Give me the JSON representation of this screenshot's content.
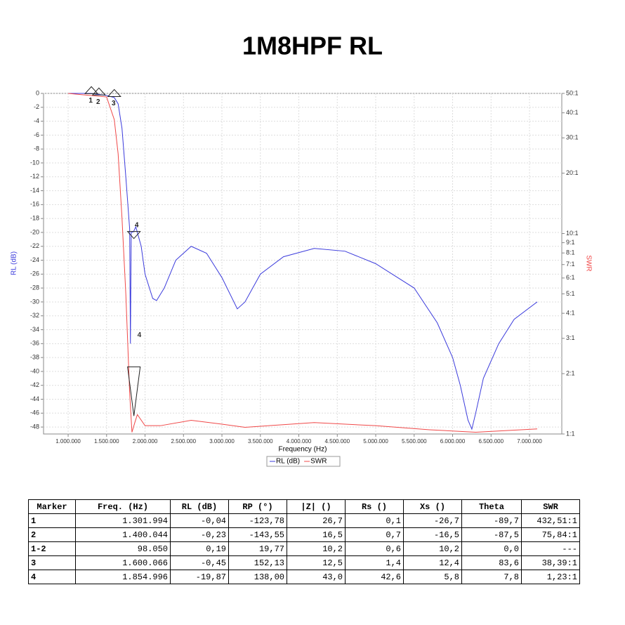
{
  "chart_data": {
    "type": "line",
    "title": "1M8HPF RL",
    "xlabel": "Frequency (Hz)",
    "ylabel": "RL (dB)",
    "y2label": "SWR",
    "xlim": [
      680000,
      7420000
    ],
    "xticks": [
      {
        "value": 1000000,
        "label": "1.000.000"
      },
      {
        "value": 1500000,
        "label": "1.500.000"
      },
      {
        "value": 2000000,
        "label": "2.000.000"
      },
      {
        "value": 2500000,
        "label": "2.500.000"
      },
      {
        "value": 3000000,
        "label": "3.000.000"
      },
      {
        "value": 3500000,
        "label": "3.500.000"
      },
      {
        "value": 4000000,
        "label": "4.000.000"
      },
      {
        "value": 4500000,
        "label": "4.500.000"
      },
      {
        "value": 5000000,
        "label": "5.000.000"
      },
      {
        "value": 5500000,
        "label": "5.500.000"
      },
      {
        "value": 6000000,
        "label": "6.000.000"
      },
      {
        "value": 6500000,
        "label": "6.500.000"
      },
      {
        "value": 7000000,
        "label": "7.000.000"
      }
    ],
    "ylim": [
      -49,
      0
    ],
    "yticks": [
      0,
      -2,
      -4,
      -6,
      -8,
      -10,
      -12,
      -14,
      -16,
      -18,
      -20,
      -22,
      -24,
      -26,
      -28,
      -30,
      -32,
      -34,
      -36,
      -38,
      -40,
      -42,
      -44,
      -46,
      -48
    ],
    "y2lim": [
      1,
      50
    ],
    "y2log": true,
    "y2ticks": [
      {
        "value": 50,
        "label": "50:1"
      },
      {
        "value": 40,
        "label": "40:1"
      },
      {
        "value": 30,
        "label": "30:1"
      },
      {
        "value": 20,
        "label": "20:1"
      },
      {
        "value": 10,
        "label": "10:1"
      },
      {
        "value": 9,
        "label": "9:1"
      },
      {
        "value": 8,
        "label": "8:1"
      },
      {
        "value": 7,
        "label": "7:1"
      },
      {
        "value": 6,
        "label": "6:1"
      },
      {
        "value": 5,
        "label": "5:1"
      },
      {
        "value": 4,
        "label": "4:1"
      },
      {
        "value": 3,
        "label": "3:1"
      },
      {
        "value": 2,
        "label": "2:1"
      },
      {
        "value": 1,
        "label": "1:1"
      }
    ],
    "grid": true,
    "series": [
      {
        "name": "RL (dB)",
        "color": "#3b3bdc",
        "x": [
          1000000,
          1300000,
          1500000,
          1600000,
          1650000,
          1700000,
          1750000,
          1800000,
          1810000,
          1820000,
          1850000,
          1880000,
          1950000,
          2000000,
          2100000,
          2150000,
          2250000,
          2400000,
          2600000,
          2800000,
          3000000,
          3200000,
          3300000,
          3500000,
          3800000,
          4200000,
          4600000,
          5000000,
          5500000,
          5800000,
          6000000,
          6100000,
          6200000,
          6250000,
          6300000,
          6400000,
          6600000,
          6800000,
          7100000
        ],
        "values": [
          0,
          0,
          -0.3,
          -0.6,
          -1.5,
          -5,
          -12,
          -19.5,
          -36,
          -20,
          -19.9,
          -19.2,
          -22,
          -26,
          -29.5,
          -29.8,
          -28,
          -24,
          -22,
          -23,
          -26.5,
          -31,
          -30,
          -26,
          -23.5,
          -22.3,
          -22.7,
          -24.5,
          -28,
          -33,
          -38,
          -42,
          -47,
          -48.3,
          -46,
          -41,
          -36,
          -32.5,
          -30
        ]
      },
      {
        "name": "SWR",
        "color": "#f04848",
        "axis": "y2",
        "x": [
          1000000,
          1500000,
          1600000,
          1650000,
          1700000,
          1750000,
          1800000,
          1830000,
          1870000,
          1900000,
          2000000,
          2200000,
          2600000,
          3000000,
          3300000,
          4200000,
          5000000,
          5700000,
          6300000,
          7100000
        ],
        "values": [
          50,
          48,
          37,
          25,
          12,
          5,
          1.6,
          1.02,
          1.15,
          1.25,
          1.1,
          1.1,
          1.17,
          1.12,
          1.08,
          1.14,
          1.1,
          1.05,
          1.02,
          1.06
        ]
      }
    ],
    "markers": [
      {
        "label": "1",
        "x": 1301994,
        "y": -0.04
      },
      {
        "label": "2",
        "x": 1400044,
        "y": -0.23
      },
      {
        "label": "3",
        "x": 1600066,
        "y": -0.45
      },
      {
        "label": "4",
        "x": 1854996,
        "y": -19.87
      },
      {
        "label": "4",
        "x": 1854996,
        "y": 1.23,
        "axis": "y2"
      }
    ]
  },
  "table": {
    "header": [
      "Marker",
      "Freq. (Hz)",
      "RL (dB)",
      "RP (°)",
      "|Z| ()",
      "Rs ()",
      "Xs ()",
      "Theta",
      "SWR"
    ],
    "rows": [
      [
        "1",
        "1.301.994",
        "-0,04",
        "-123,78",
        "26,7",
        "0,1",
        "-26,7",
        "-89,7",
        "432,51:1"
      ],
      [
        "2",
        "1.400.044",
        "-0,23",
        "-143,55",
        "16,5",
        "0,7",
        "-16,5",
        "-87,5",
        "75,84:1"
      ],
      [
        "1-2",
        "98.050",
        "0,19",
        "19,77",
        "10,2",
        "0,6",
        "10,2",
        "0,0",
        "---"
      ],
      [
        "3",
        "1.600.066",
        "-0,45",
        "152,13",
        "12,5",
        "1,4",
        "12,4",
        "83,6",
        "38,39:1"
      ],
      [
        "4",
        "1.854.996",
        "-19,87",
        "138,00",
        "43,0",
        "42,6",
        "5,8",
        "7,8",
        "1,23:1"
      ]
    ]
  }
}
